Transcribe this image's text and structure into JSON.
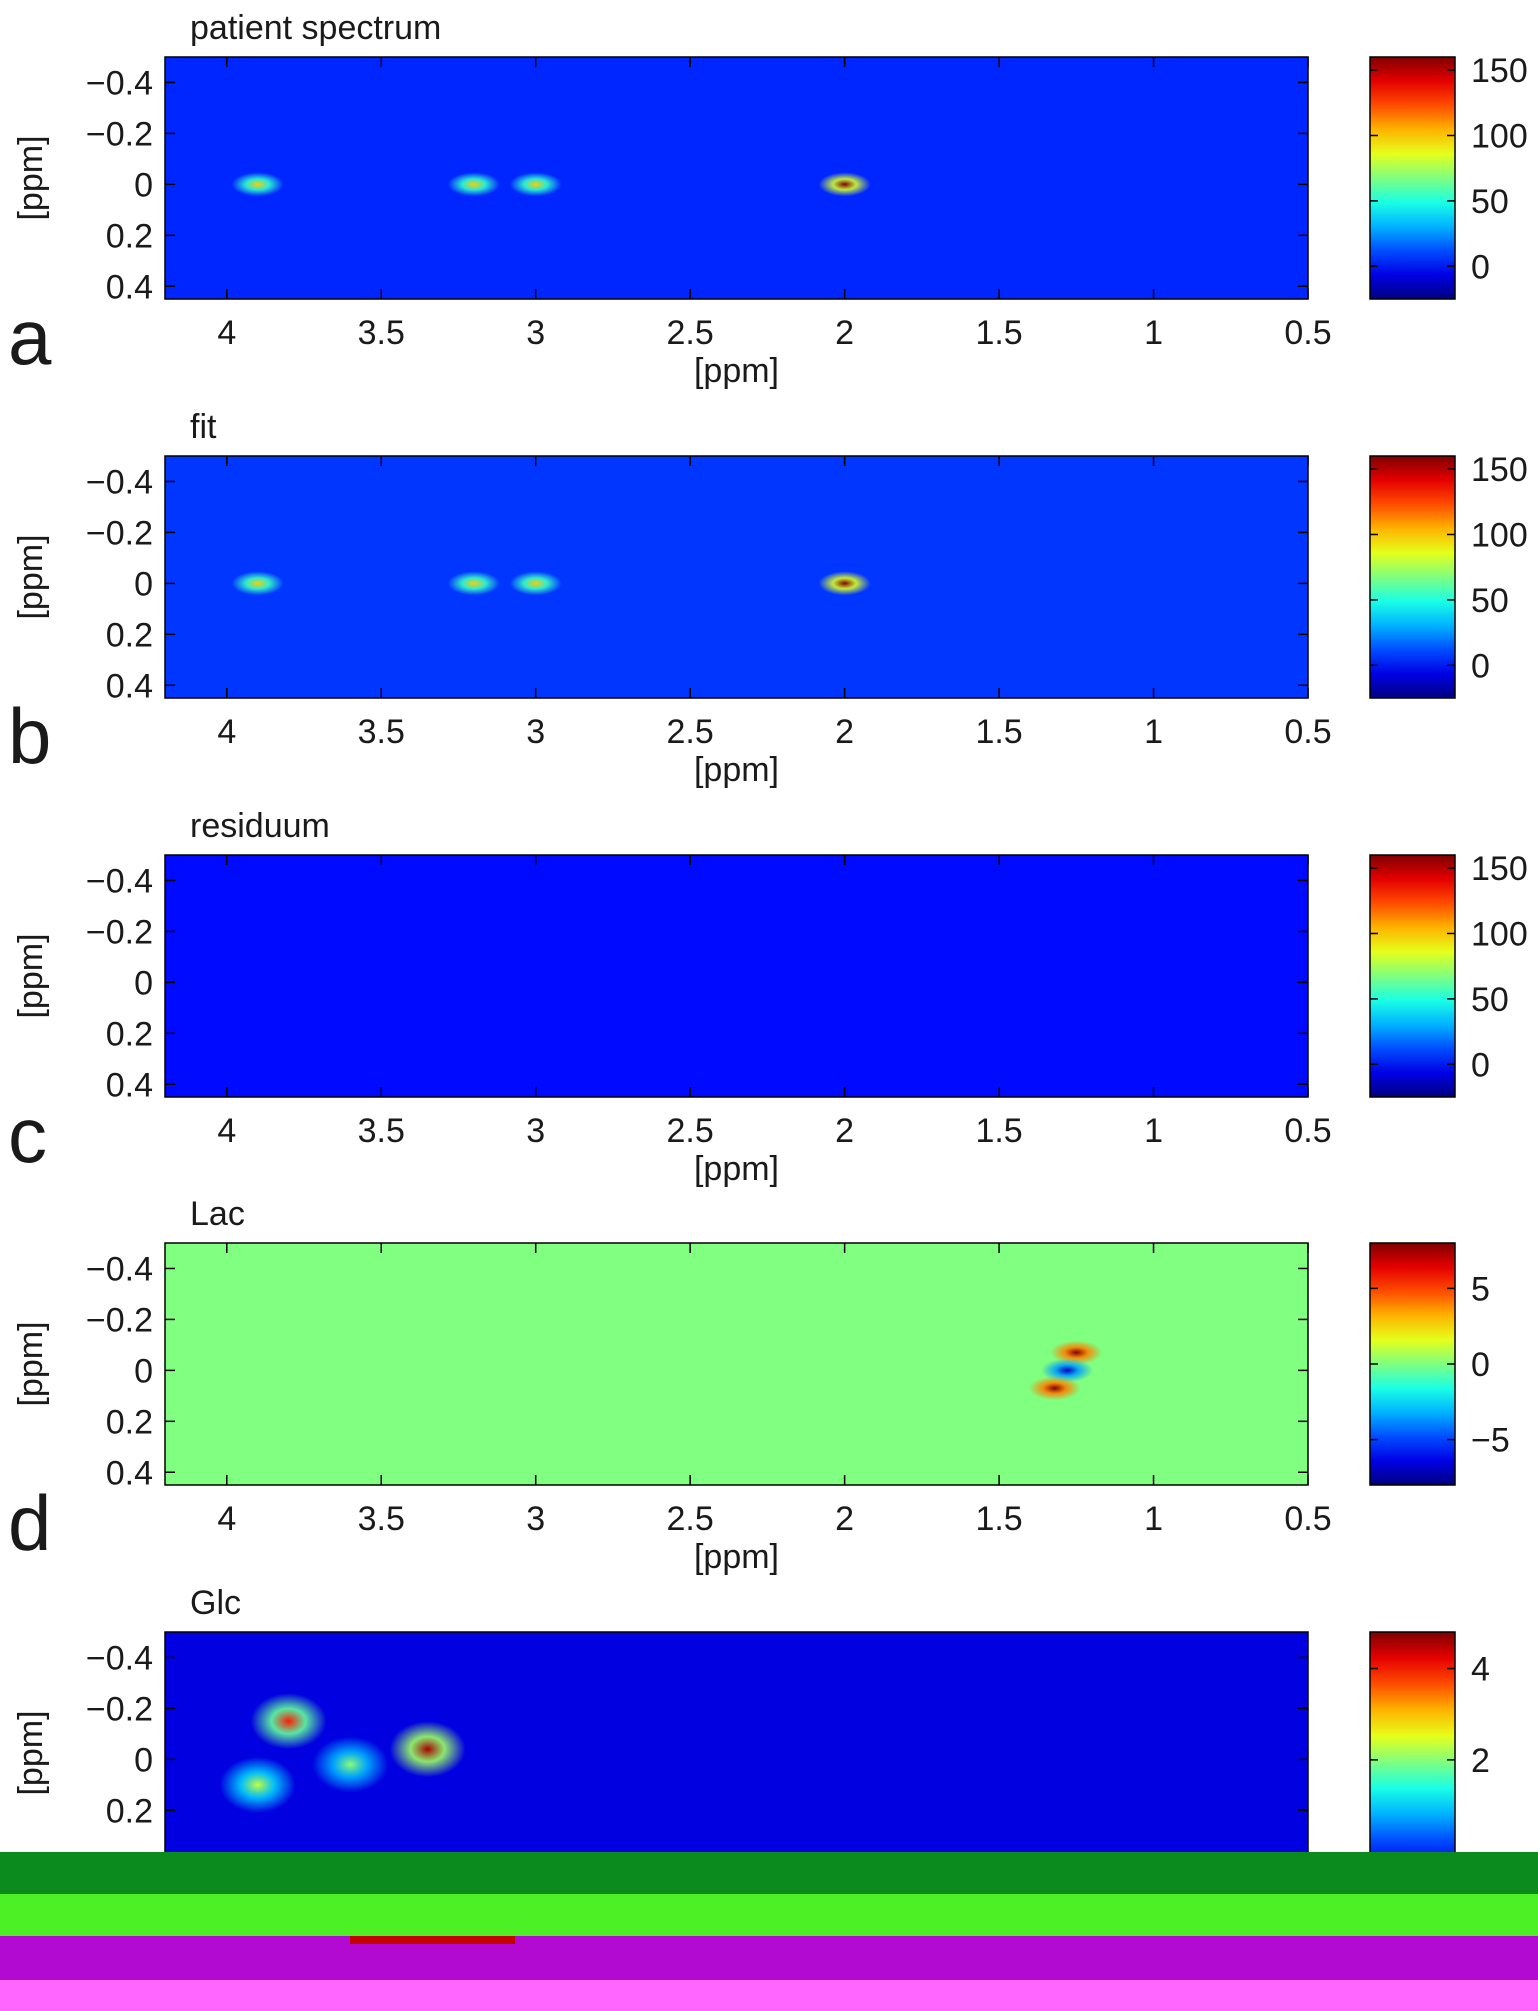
{
  "figure": {
    "colors": {
      "background": "#ffffff",
      "text": "#1a1a1a",
      "axis": "#000000"
    }
  },
  "chart_data": [
    {
      "type": "heatmap",
      "panel_letter": "a",
      "title": "patient spectrum",
      "xlabel": "[ppm]",
      "ylabel": "[ppm]",
      "xlim": [
        4.2,
        0.5
      ],
      "ylim": [
        -0.5,
        0.45
      ],
      "x_ticks": [
        4,
        3.5,
        3,
        2.5,
        2,
        1.5,
        1,
        0.5
      ],
      "x_tick_labels": [
        "4",
        "3.5",
        "3",
        "2.5",
        "2",
        "1.5",
        "1",
        "0.5"
      ],
      "y_ticks": [
        -0.4,
        -0.2,
        0,
        0.2,
        0.4
      ],
      "y_tick_labels": [
        "−0.4",
        "−0.2",
        "0",
        "0.2",
        "0.4"
      ],
      "colorbar": {
        "range": [
          -25,
          160
        ],
        "ticks": [
          0,
          50,
          100,
          150
        ],
        "tick_labels": [
          "0",
          "50",
          "100",
          "150"
        ]
      },
      "background_level": 5,
      "peaks": [
        {
          "x": 3.9,
          "y": 0,
          "value": 100
        },
        {
          "x": 3.2,
          "y": 0,
          "value": 100
        },
        {
          "x": 3.0,
          "y": 0,
          "value": 100
        },
        {
          "x": 2.0,
          "y": 0,
          "value": 160
        }
      ]
    },
    {
      "type": "heatmap",
      "panel_letter": "b",
      "title": "fit",
      "xlabel": "[ppm]",
      "ylabel": "[ppm]",
      "xlim": [
        4.2,
        0.5
      ],
      "ylim": [
        -0.5,
        0.45
      ],
      "x_ticks": [
        4,
        3.5,
        3,
        2.5,
        2,
        1.5,
        1,
        0.5
      ],
      "x_tick_labels": [
        "4",
        "3.5",
        "3",
        "2.5",
        "2",
        "1.5",
        "1",
        "0.5"
      ],
      "y_ticks": [
        -0.4,
        -0.2,
        0,
        0.2,
        0.4
      ],
      "y_tick_labels": [
        "−0.4",
        "−0.2",
        "0",
        "0.2",
        "0.4"
      ],
      "colorbar": {
        "range": [
          -25,
          160
        ],
        "ticks": [
          0,
          50,
          100,
          150
        ],
        "tick_labels": [
          "0",
          "50",
          "100",
          "150"
        ]
      },
      "background_level": 8,
      "peaks": [
        {
          "x": 3.9,
          "y": 0,
          "value": 100
        },
        {
          "x": 3.2,
          "y": 0,
          "value": 100
        },
        {
          "x": 3.0,
          "y": 0,
          "value": 100
        },
        {
          "x": 2.0,
          "y": 0,
          "value": 160
        }
      ]
    },
    {
      "type": "heatmap",
      "panel_letter": "c",
      "title": "residuum",
      "xlabel": "[ppm]",
      "ylabel": "[ppm]",
      "xlim": [
        4.2,
        0.5
      ],
      "ylim": [
        -0.5,
        0.45
      ],
      "x_ticks": [
        4,
        3.5,
        3,
        2.5,
        2,
        1.5,
        1,
        0.5
      ],
      "x_tick_labels": [
        "4",
        "3.5",
        "3",
        "2.5",
        "2",
        "1.5",
        "1",
        "0.5"
      ],
      "y_ticks": [
        -0.4,
        -0.2,
        0,
        0.2,
        0.4
      ],
      "y_tick_labels": [
        "−0.4",
        "−0.2",
        "0",
        "0.2",
        "0.4"
      ],
      "colorbar": {
        "range": [
          -25,
          160
        ],
        "ticks": [
          0,
          50,
          100,
          150
        ],
        "tick_labels": [
          "0",
          "50",
          "100",
          "150"
        ]
      },
      "background_level": 0,
      "peaks": []
    },
    {
      "type": "heatmap",
      "panel_letter": "d",
      "title": "Lac",
      "xlabel": "[ppm]",
      "ylabel": "[ppm]",
      "xlim": [
        4.2,
        0.5
      ],
      "ylim": [
        -0.5,
        0.45
      ],
      "x_ticks": [
        4,
        3.5,
        3,
        2.5,
        2,
        1.5,
        1,
        0.5
      ],
      "x_tick_labels": [
        "4",
        "3.5",
        "3",
        "2.5",
        "2",
        "1.5",
        "1",
        "0.5"
      ],
      "y_ticks": [
        -0.4,
        -0.2,
        0,
        0.2,
        0.4
      ],
      "y_tick_labels": [
        "−0.4",
        "−0.2",
        "0",
        "0.2",
        "0.4"
      ],
      "colorbar": {
        "range": [
          -8,
          8
        ],
        "ticks": [
          -5,
          0,
          5
        ],
        "tick_labels": [
          "−5",
          "0",
          "5"
        ]
      },
      "background_level": 0,
      "peaks": [
        {
          "x": 1.25,
          "y": -0.07,
          "value": 8
        },
        {
          "x": 1.28,
          "y": 0,
          "value": -7
        },
        {
          "x": 1.32,
          "y": 0.07,
          "value": 8
        }
      ]
    },
    {
      "type": "heatmap",
      "panel_letter": "",
      "title": "Glc",
      "xlabel": "",
      "ylabel": "[ppm]",
      "xlim": [
        4.2,
        0.5
      ],
      "ylim": [
        -0.5,
        0.45
      ],
      "x_ticks": [],
      "x_tick_labels": [],
      "y_ticks": [
        -0.4,
        -0.2,
        0,
        0.2
      ],
      "y_tick_labels": [
        "−0.4",
        "−0.2",
        "0",
        "0.2"
      ],
      "colorbar": {
        "range": [
          -0.5,
          4.8
        ],
        "ticks": [
          2,
          4
        ],
        "tick_labels": [
          "2",
          "4"
        ]
      },
      "background_level": 0,
      "peaks": [
        {
          "x": 3.8,
          "y": -0.15,
          "value": 4
        },
        {
          "x": 3.35,
          "y": -0.04,
          "value": 4.6
        },
        {
          "x": 3.9,
          "y": 0.1,
          "value": 2.5
        },
        {
          "x": 3.6,
          "y": 0.02,
          "value": 2.2
        }
      ]
    }
  ]
}
